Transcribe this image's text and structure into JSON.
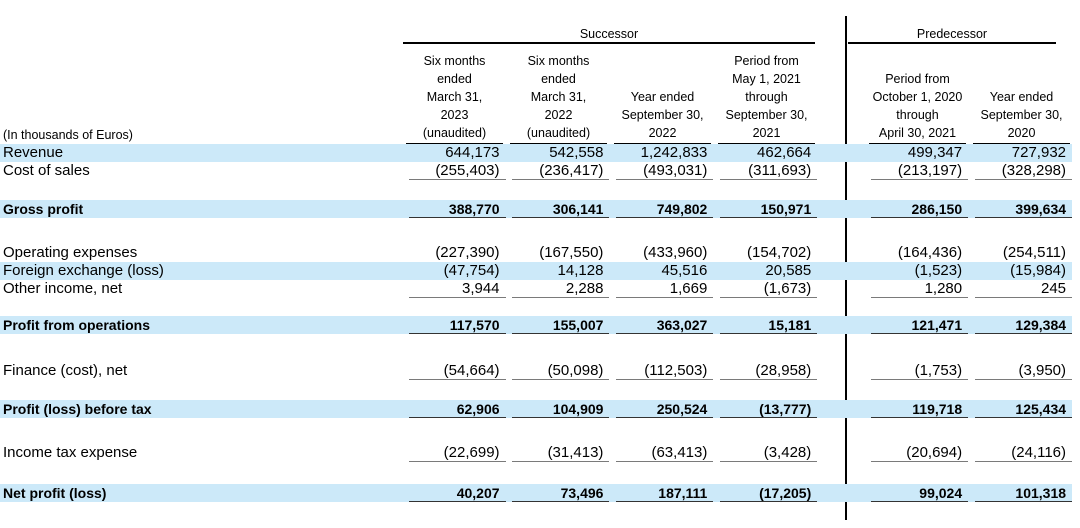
{
  "table": {
    "title_hint": "Consolidated statement of profit or loss",
    "unit_note": "(In thousands of Euros)",
    "highlight_color": "#cce9f9",
    "groups": [
      {
        "label": "Successor"
      },
      {
        "label": "Predecessor"
      }
    ],
    "columns": [
      {
        "group": "Successor",
        "header": "Six months\nended\nMarch 31,\n2023\n(unaudited)"
      },
      {
        "group": "Successor",
        "header": "Six months\nended\nMarch 31,\n2022\n(unaudited)"
      },
      {
        "group": "Successor",
        "header": "Year ended\nSeptember 30,\n2022"
      },
      {
        "group": "Successor",
        "header": "Period from\nMay 1, 2021\nthrough\nSeptember 30,\n2021"
      },
      {
        "group": "Predecessor",
        "header": "Period from\nOctober 1, 2020\nthrough\nApril 30, 2021"
      },
      {
        "group": "Predecessor",
        "header": "Year ended\nSeptember 30,\n2020"
      }
    ],
    "rows": [
      {
        "label": "Revenue",
        "values": [
          "644,173",
          "542,558",
          "1,242,833",
          "462,664",
          "499,347",
          "727,932"
        ]
      },
      {
        "label": "Cost of sales",
        "values": [
          "(255,403)",
          "(236,417)",
          "(493,031)",
          "(311,693)",
          "(213,197)",
          "(328,298)"
        ]
      },
      {
        "label": "Gross profit",
        "values": [
          "388,770",
          "306,141",
          "749,802",
          "150,971",
          "286,150",
          "399,634"
        ]
      },
      {
        "label": "Operating expenses",
        "values": [
          "(227,390)",
          "(167,550)",
          "(433,960)",
          "(154,702)",
          "(164,436)",
          "(254,511)"
        ]
      },
      {
        "label": "Foreign exchange (loss)",
        "values": [
          "(47,754)",
          "14,128",
          "45,516",
          "20,585",
          "(1,523)",
          "(15,984)"
        ]
      },
      {
        "label": "Other income, net",
        "values": [
          "3,944",
          "2,288",
          "1,669",
          "(1,673)",
          "1,280",
          "245"
        ]
      },
      {
        "label": "Profit from operations",
        "values": [
          "117,570",
          "155,007",
          "363,027",
          "15,181",
          "121,471",
          "129,384"
        ]
      },
      {
        "label": "Finance (cost), net",
        "values": [
          "(54,664)",
          "(50,098)",
          "(112,503)",
          "(28,958)",
          "(1,753)",
          "(3,950)"
        ]
      },
      {
        "label": "Profit (loss) before tax",
        "values": [
          "62,906",
          "104,909",
          "250,524",
          "(13,777)",
          "119,718",
          "125,434"
        ]
      },
      {
        "label": "Income tax expense",
        "values": [
          "(22,699)",
          "(31,413)",
          "(63,413)",
          "(3,428)",
          "(20,694)",
          "(24,116)"
        ]
      },
      {
        "label": "Net profit (loss)",
        "values": [
          "40,207",
          "73,496",
          "187,111",
          "(17,205)",
          "99,024",
          "101,318"
        ]
      }
    ]
  }
}
